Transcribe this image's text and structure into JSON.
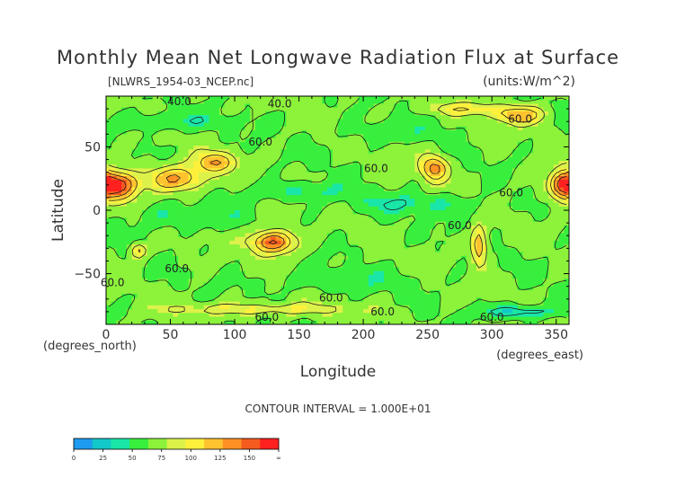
{
  "chart_data": {
    "type": "heatmap",
    "title": "Monthly Mean Net Longwave Radiation Flux at Surface",
    "file_label": "[NLWRS_1954-03_NCEP.nc]",
    "units_label": "(units:W/m^2)",
    "xlabel": "Longitude",
    "x_units": "(degrees_east)",
    "y_units": "(degrees_north)",
    "ylabel": "Latitude",
    "xlim": [
      0,
      360
    ],
    "ylim": [
      -90,
      90
    ],
    "x_ticks": [
      0,
      50,
      100,
      150,
      200,
      250,
      300,
      350
    ],
    "y_ticks": [
      50,
      0,
      -50
    ],
    "contour_note": "CONTOUR INTERVAL = 1.000E+01",
    "contour_labels": [
      {
        "text": "40.0",
        "lon": 57,
        "lat": 83
      },
      {
        "text": "40.0",
        "lon": 135,
        "lat": 81
      },
      {
        "text": "60.0",
        "lon": 120,
        "lat": 51
      },
      {
        "text": "60.0",
        "lon": 210,
        "lat": 30
      },
      {
        "text": "60.0",
        "lon": 322,
        "lat": 69
      },
      {
        "text": "60.0",
        "lon": 315,
        "lat": 11
      },
      {
        "text": "60.0",
        "lon": 275,
        "lat": -15
      },
      {
        "text": "60.0",
        "lon": 55,
        "lat": -49
      },
      {
        "text": "60.0",
        "lon": 5,
        "lat": -60
      },
      {
        "text": "60.0",
        "lon": 175,
        "lat": -72
      },
      {
        "text": "60.0",
        "lon": 215,
        "lat": -83
      },
      {
        "text": "60.0",
        "lon": 125,
        "lat": -87
      },
      {
        "text": "60.0",
        "lon": 300,
        "lat": -87
      }
    ],
    "features": [
      {
        "lon": 10,
        "lat": 20,
        "rx": 14,
        "ry": 11,
        "value": 150
      },
      {
        "lon": 355,
        "lat": 20,
        "rx": 10,
        "ry": 11,
        "value": 145
      },
      {
        "lon": 55,
        "lat": 25,
        "rx": 22,
        "ry": 10,
        "value": 125
      },
      {
        "lon": 85,
        "lat": 38,
        "rx": 15,
        "ry": 8,
        "value": 118
      },
      {
        "lon": 130,
        "lat": -25,
        "rx": 16,
        "ry": 9,
        "value": 150
      },
      {
        "lon": 255,
        "lat": 33,
        "rx": 10,
        "ry": 10,
        "value": 130
      },
      {
        "lon": 290,
        "lat": -28,
        "rx": 6,
        "ry": 14,
        "value": 125
      },
      {
        "lon": 322,
        "lat": 75,
        "rx": 20,
        "ry": 7,
        "value": 115
      },
      {
        "lon": 25,
        "lat": -32,
        "rx": 6,
        "ry": 6,
        "value": 110
      },
      {
        "lon": 280,
        "lat": 80,
        "rx": 30,
        "ry": 5,
        "value": 95
      },
      {
        "lon": 150,
        "lat": 15,
        "rx": 40,
        "ry": 7,
        "value": 40
      },
      {
        "lon": 240,
        "lat": 5,
        "rx": 50,
        "ry": 8,
        "value": 42
      },
      {
        "lon": 60,
        "lat": -5,
        "rx": 40,
        "ry": 10,
        "value": 45
      },
      {
        "lon": 180,
        "lat": -55,
        "rx": 60,
        "ry": 8,
        "value": 48
      },
      {
        "lon": 220,
        "lat": 62,
        "rx": 40,
        "ry": 8,
        "value": 48
      },
      {
        "lon": 50,
        "lat": 70,
        "rx": 40,
        "ry": 7,
        "value": 42
      },
      {
        "lon": 120,
        "lat": -78,
        "rx": 70,
        "ry": 5,
        "value": 95
      },
      {
        "lon": 320,
        "lat": -80,
        "rx": 30,
        "ry": 5,
        "value": 25
      }
    ],
    "colorbar": {
      "ticks": [
        "0",
        "25",
        "50",
        "75",
        "100",
        "125",
        "150",
        "∞"
      ],
      "colors": [
        "#1e9bf0",
        "#12c8c8",
        "#19e6a8",
        "#38ef3e",
        "#8cf23a",
        "#dcf24a",
        "#fff03c",
        "#ffc330",
        "#ff9124",
        "#f55a1e",
        "#ff2020"
      ]
    }
  }
}
